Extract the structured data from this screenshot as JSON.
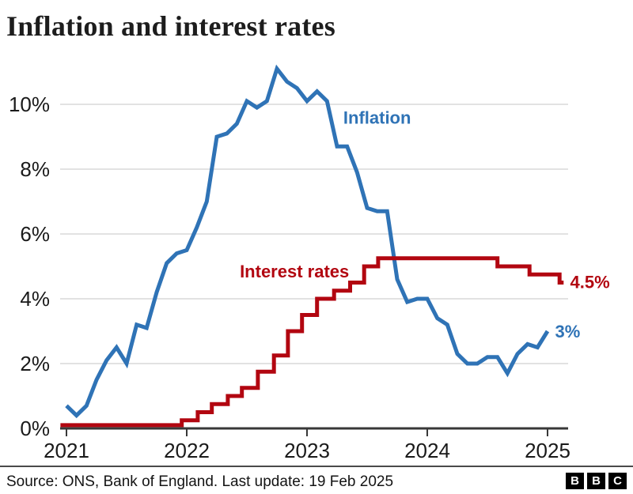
{
  "title": "Inflation and interest rates",
  "colors": {
    "inflation": "#2f73b6",
    "interest": "#b20610",
    "grid": "#d8d8d8",
    "axis": "#383838",
    "text": "#1a1a1a"
  },
  "chart_data": {
    "type": "line",
    "title": "Inflation and interest rates",
    "x_unit": "months since Jan 2021",
    "xlim_months": [
      -0.6,
      50.6
    ],
    "ylim": [
      0,
      11.5
    ],
    "grid": "horizontal",
    "legend_position": "inline-labels",
    "x_ticks": [
      {
        "m": 0,
        "label": "2021"
      },
      {
        "m": 12,
        "label": "2022"
      },
      {
        "m": 24,
        "label": "2023"
      },
      {
        "m": 36,
        "label": "2024"
      },
      {
        "m": 48,
        "label": "2025"
      }
    ],
    "y_ticks": [
      {
        "v": 0,
        "label": "0%"
      },
      {
        "v": 2,
        "label": "2%"
      },
      {
        "v": 4,
        "label": "4%"
      },
      {
        "v": 6,
        "label": "6%"
      },
      {
        "v": 8,
        "label": "8%"
      },
      {
        "v": 10,
        "label": "10%"
      }
    ],
    "series": [
      {
        "name": "Inflation",
        "color_key": "inflation",
        "style": "line",
        "start_month": 0,
        "months": "Jan 2021 to Jan 2025, monthly CPI %",
        "values": [
          0.7,
          0.4,
          0.7,
          1.5,
          2.1,
          2.5,
          2.0,
          3.2,
          3.1,
          4.2,
          5.1,
          5.4,
          5.5,
          6.2,
          7.0,
          9.0,
          9.1,
          9.4,
          10.1,
          9.9,
          10.1,
          11.1,
          10.7,
          10.5,
          10.1,
          10.4,
          10.1,
          8.7,
          8.7,
          7.9,
          6.8,
          6.7,
          6.7,
          4.6,
          3.9,
          4.0,
          4.0,
          3.4,
          3.2,
          2.3,
          2.0,
          2.0,
          2.2,
          2.2,
          1.7,
          2.3,
          2.6,
          2.5,
          3.0
        ]
      },
      {
        "name": "Interest rates",
        "color_key": "interest",
        "style": "step",
        "end_month": 49.6,
        "points": [
          {
            "m": -0.6,
            "v": 0.1
          },
          {
            "m": 11.5,
            "v": 0.25
          },
          {
            "m": 13.1,
            "v": 0.5
          },
          {
            "m": 14.5,
            "v": 0.75
          },
          {
            "m": 16.1,
            "v": 1.0
          },
          {
            "m": 17.5,
            "v": 1.25
          },
          {
            "m": 19.1,
            "v": 1.75
          },
          {
            "m": 20.7,
            "v": 2.25
          },
          {
            "m": 22.1,
            "v": 3.0
          },
          {
            "m": 23.5,
            "v": 3.5
          },
          {
            "m": 25.0,
            "v": 4.0
          },
          {
            "m": 26.7,
            "v": 4.25
          },
          {
            "m": 28.3,
            "v": 4.5
          },
          {
            "m": 29.7,
            "v": 5.0
          },
          {
            "m": 31.1,
            "v": 5.25
          },
          {
            "m": 43.0,
            "v": 5.0
          },
          {
            "m": 46.2,
            "v": 4.75
          },
          {
            "m": 49.2,
            "v": 4.5
          }
        ]
      }
    ],
    "annotations": [
      {
        "text": "Inflation",
        "m": 31.0,
        "v": 9.6,
        "anchor": "middle",
        "color_key": "inflation"
      },
      {
        "text": "Interest rates",
        "m": 22.75,
        "v": 4.85,
        "anchor": "middle",
        "color_key": "interest"
      },
      {
        "text": "4.5%",
        "m": 50.25,
        "v": 4.52,
        "anchor": "start",
        "color_key": "interest"
      },
      {
        "text": "3%",
        "m": 48.75,
        "v": 3.0,
        "anchor": "start",
        "color_key": "inflation"
      }
    ]
  },
  "footer": {
    "source": "Source: ONS, Bank of England. Last update: 19 Feb 2025",
    "logo_letters": [
      "B",
      "B",
      "C"
    ]
  }
}
